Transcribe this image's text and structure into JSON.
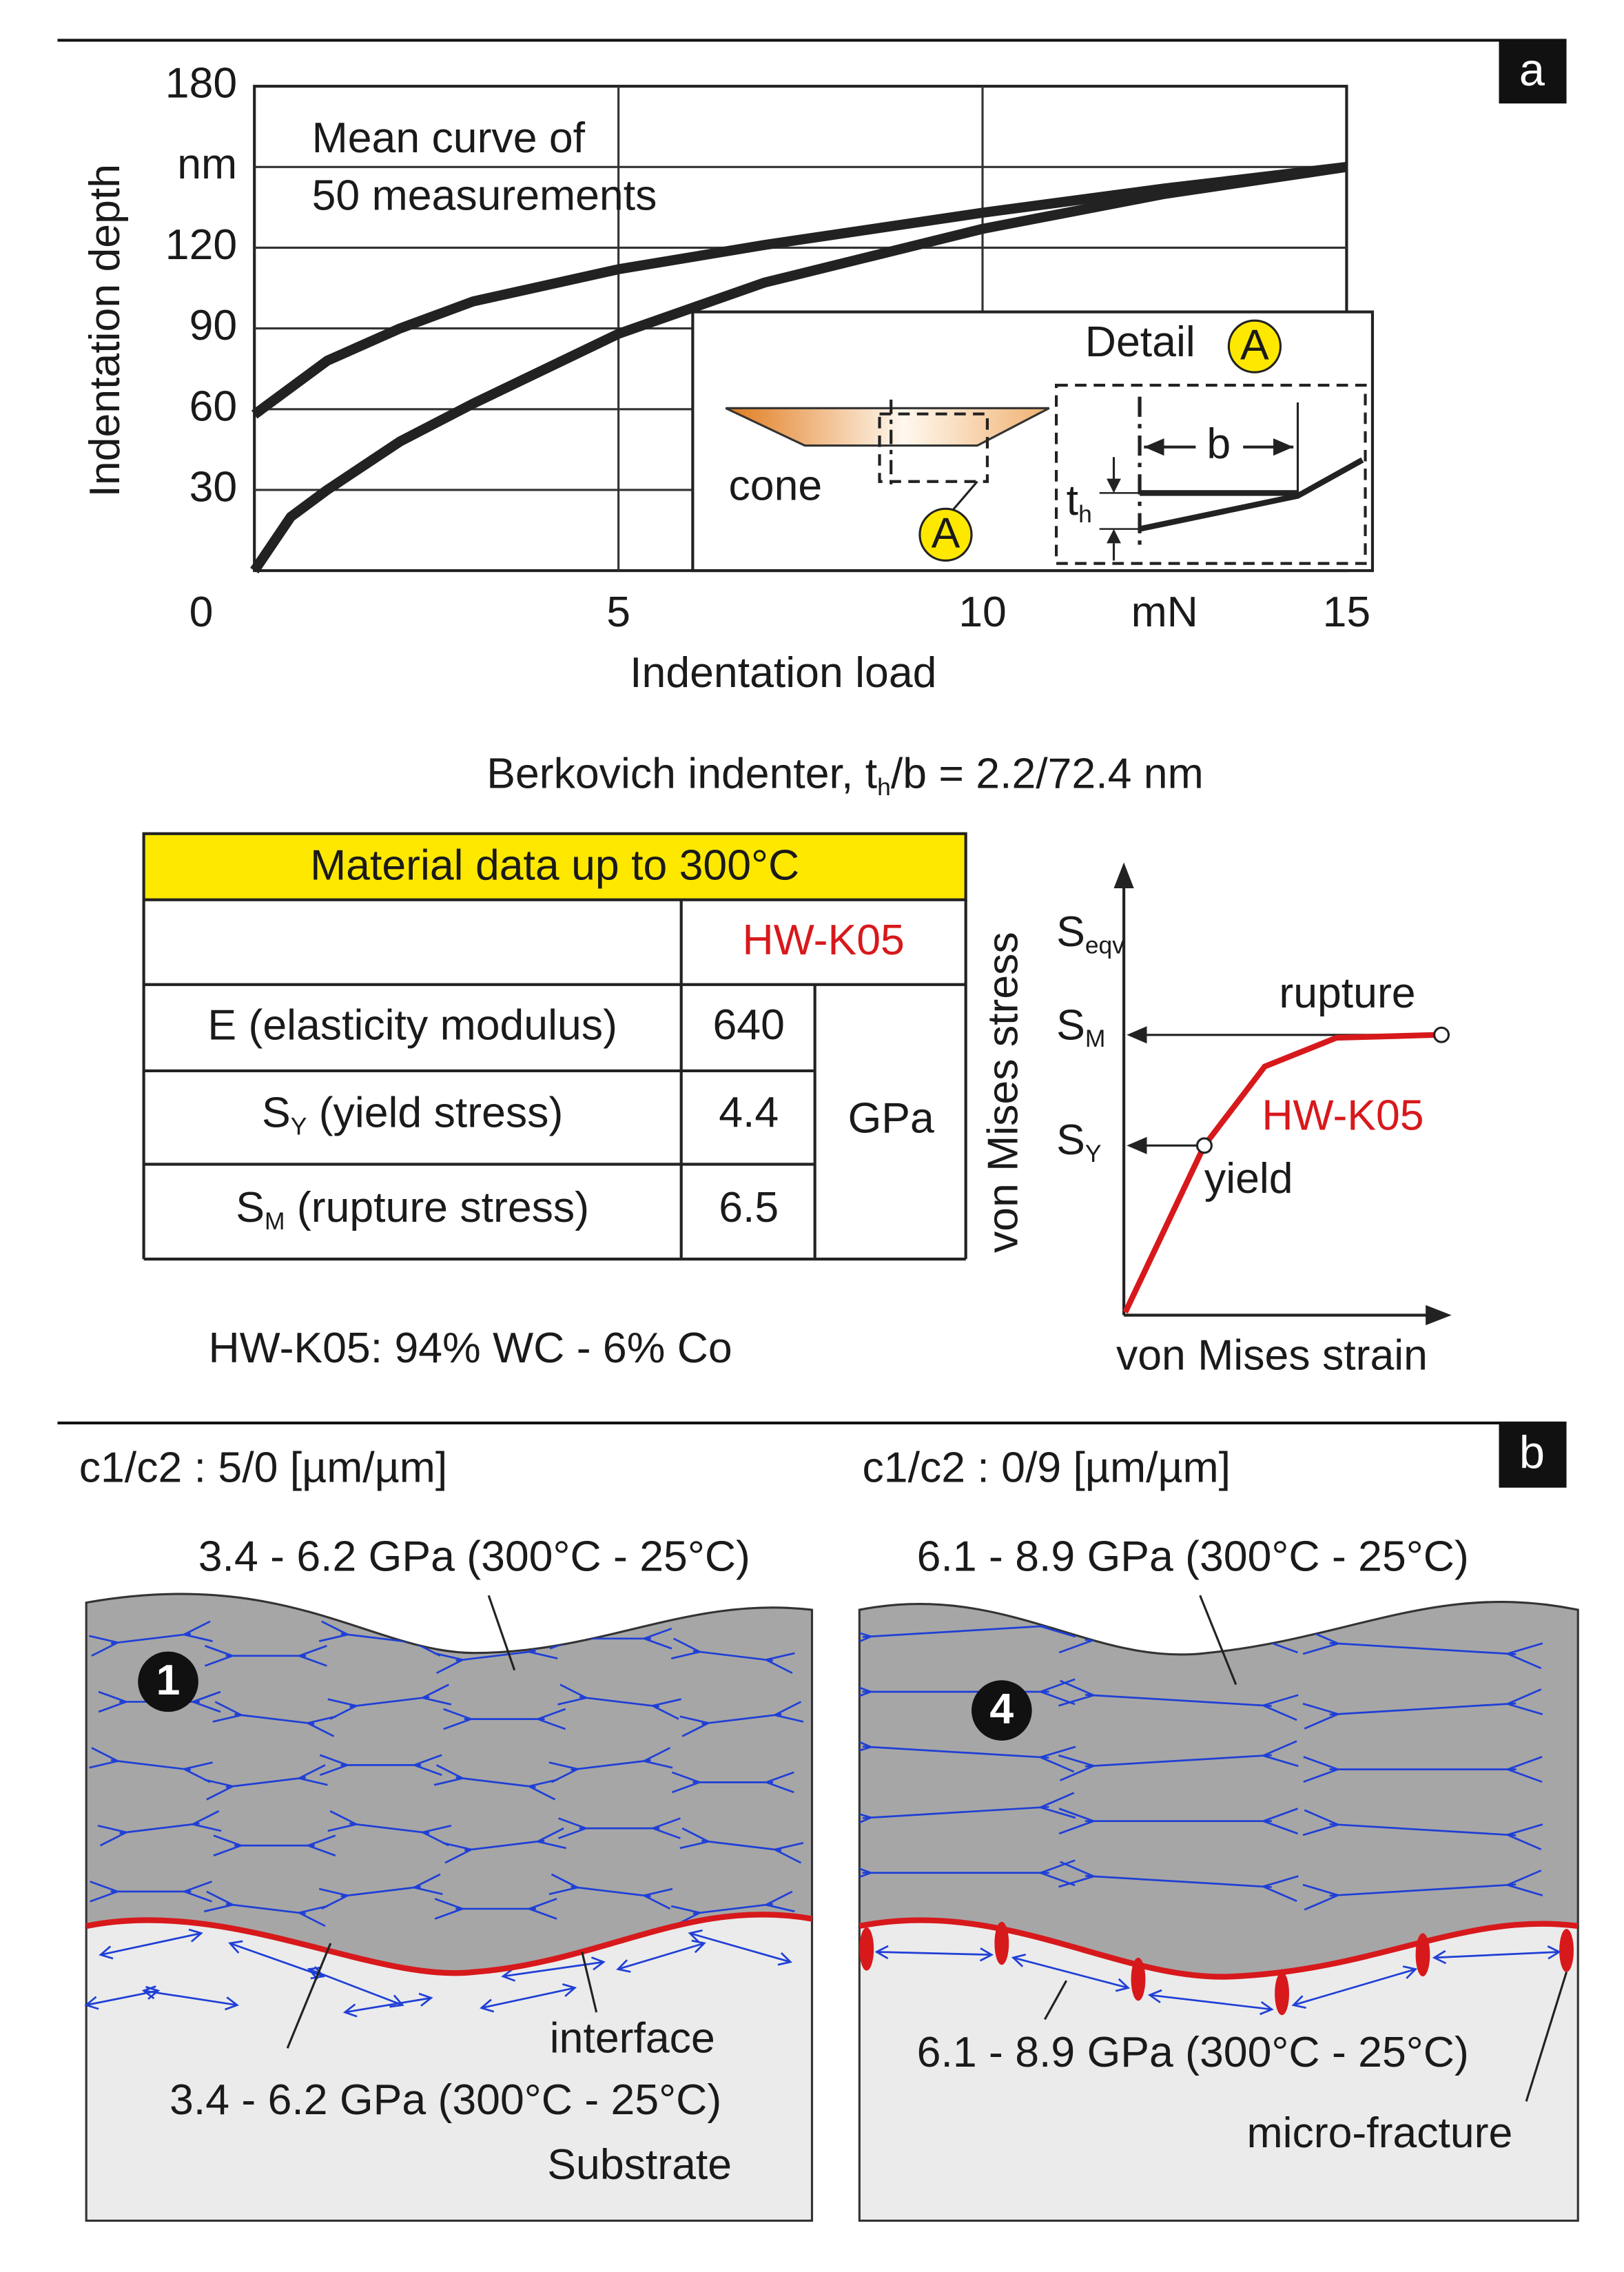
{
  "chart_data": {
    "type": "line",
    "panel": "a",
    "y_label": "Indentation depth",
    "x_label": "Indentation load",
    "annotation": [
      "Mean curve of",
      "50 measurements"
    ],
    "x": [
      0,
      0.5,
      1,
      2,
      3,
      5,
      7,
      10,
      12.5,
      15
    ],
    "series": [
      {
        "color": "#222222",
        "values": [
          58,
          68,
          78,
          90,
          100,
          112,
          121,
          133,
          142,
          150
        ]
      },
      {
        "color": "#222222",
        "values": [
          0,
          20,
          30,
          48,
          62,
          88,
          107,
          127,
          140,
          150
        ]
      }
    ],
    "xlim": [
      0,
      15
    ],
    "xticks": [
      0,
      5,
      10,
      {
        "value": 12.5,
        "label": "mN"
      },
      15
    ],
    "ylim": [
      0,
      180
    ],
    "yticks": [
      30,
      60,
      90,
      120,
      {
        "value": 150,
        "label": "nm"
      },
      180
    ],
    "grid": true
  },
  "detail": {
    "title": "Detail",
    "marker": "A",
    "cone": "cone",
    "b": "b",
    "th": [
      "t",
      "h"
    ]
  },
  "caption": [
    "Berkovich indenter, t",
    "h",
    "/b = 2.2/72.4 nm"
  ],
  "table": {
    "title": "Material data up to 300°C",
    "material": "HW-K05",
    "unit": "GPa",
    "rows": [
      {
        "label": [
          "E (elasticity modulus)"
        ],
        "value": 640
      },
      {
        "label": [
          "S",
          "Y",
          " (yield stress)"
        ],
        "value": 4.4
      },
      {
        "label": [
          "S",
          "M",
          " (rupture stress)"
        ],
        "value": 6.5
      }
    ],
    "note": "HW-K05: 94% WC - 6% Co"
  },
  "stress_strain": {
    "y_label": "von Mises stress",
    "x_label": "von Mises strain",
    "s_eqv": [
      "S",
      "eqv"
    ],
    "s_m": [
      "S",
      "M"
    ],
    "s_y": [
      "S",
      "Y"
    ],
    "rupture": "rupture",
    "yield": "yield",
    "material": "HW-K05"
  },
  "panel_b": {
    "label": "b",
    "left": {
      "title": "c1/c2 : 5/0 [µm/µm]",
      "top_label": "3.4 - 6.2 GPa (300°C - 25°C)",
      "marker": "1",
      "interface": "interface",
      "bottom_label": "3.4 - 6.2 GPa (300°C - 25°C)",
      "substrate": "Substrate"
    },
    "right": {
      "title": "c1/c2 : 0/9 [µm/µm]",
      "top_label": "6.1 - 8.9 GPa (300°C - 25°C)",
      "marker": "4",
      "bottom_label": "6.1 - 8.9 GPa (300°C - 25°C)",
      "fracture": "micro-fracture"
    }
  }
}
